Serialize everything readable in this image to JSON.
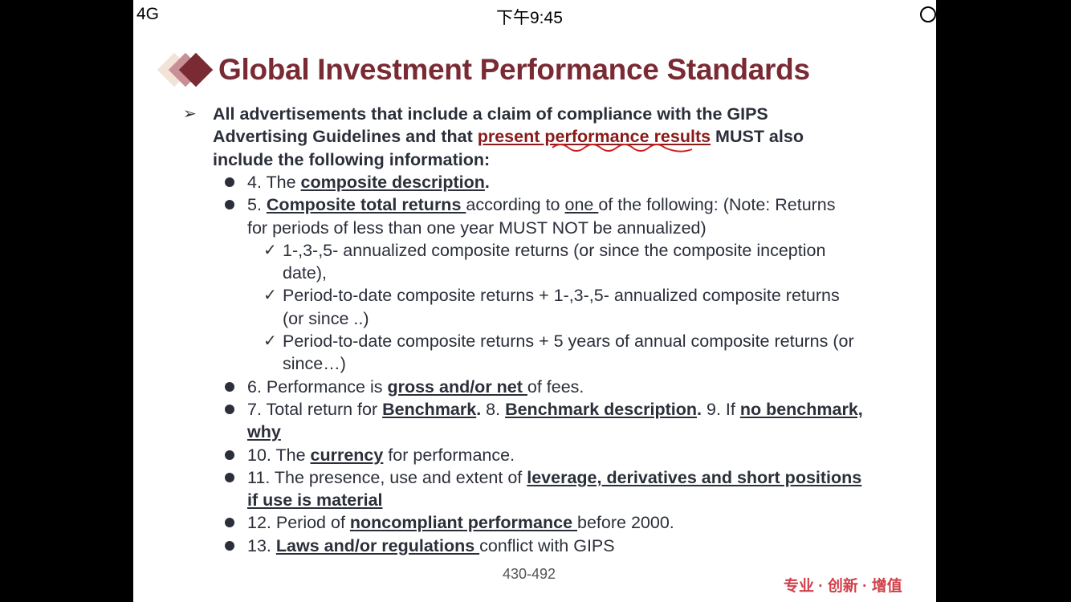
{
  "status_bar": {
    "network": "4G",
    "time": "下午9:45",
    "lock_icon": "rotation-lock-icon"
  },
  "slide": {
    "title": "Global Investment Performance Standards",
    "intro": [
      [
        {
          "t": "All advertisements that include a claim of compliance with the GIPS",
          "s": "b"
        }
      ],
      [
        {
          "t": "Advertising Guidelines and that ",
          "s": "b"
        },
        {
          "t": "present performance results",
          "s": "red"
        },
        {
          "t": " MUST also",
          "s": "b"
        }
      ],
      [
        {
          "t": "include the following information:",
          "s": "b"
        }
      ]
    ],
    "items": [
      {
        "type": "dot",
        "lines": [
          [
            {
              "t": "4. The ",
              "s": ""
            },
            {
              "t": "composite description",
              "s": "bu"
            },
            {
              "t": ".",
              "s": "b"
            }
          ]
        ]
      },
      {
        "type": "dot",
        "lines": [
          [
            {
              "t": "5. ",
              "s": ""
            },
            {
              "t": "Composite total returns ",
              "s": "bu"
            },
            {
              "t": "according to ",
              "s": ""
            },
            {
              "t": "one ",
              "s": "u"
            },
            {
              "t": "of the following: (Note: Returns",
              "s": ""
            }
          ],
          [
            {
              "t": "for periods of less than one year MUST NOT be annualized)",
              "s": ""
            }
          ]
        ]
      },
      {
        "type": "check",
        "lines": [
          [
            {
              "t": "1-,3-,5- annualized composite returns (or since the composite inception",
              "s": ""
            }
          ],
          [
            {
              "t": "date),",
              "s": ""
            }
          ]
        ]
      },
      {
        "type": "check",
        "lines": [
          [
            {
              "t": "Period-to-date composite returns + 1-,3-,5- annualized composite returns",
              "s": ""
            }
          ],
          [
            {
              "t": "(or since ..)",
              "s": ""
            }
          ]
        ]
      },
      {
        "type": "check",
        "lines": [
          [
            {
              "t": "Period-to-date composite returns + 5 years of annual composite returns (or",
              "s": ""
            }
          ],
          [
            {
              "t": "since…)",
              "s": ""
            }
          ]
        ]
      },
      {
        "type": "dot",
        "lines": [
          [
            {
              "t": "6. Performance is ",
              "s": ""
            },
            {
              "t": "gross and/or net ",
              "s": "bu"
            },
            {
              "t": "of fees.",
              "s": ""
            }
          ]
        ]
      },
      {
        "type": "dot",
        "lines": [
          [
            {
              "t": "7. Total return for ",
              "s": ""
            },
            {
              "t": "Benchmark",
              "s": "bu"
            },
            {
              "t": ". ",
              "s": "b"
            },
            {
              "t": "8. ",
              "s": ""
            },
            {
              "t": "Benchmark description",
              "s": "bu"
            },
            {
              "t": ". ",
              "s": "b"
            },
            {
              "t": "9. If ",
              "s": ""
            },
            {
              "t": "no benchmark,",
              "s": "bu"
            }
          ],
          [
            {
              "t": "why",
              "s": "bu"
            }
          ]
        ]
      },
      {
        "type": "dot",
        "lines": [
          [
            {
              "t": "10. The ",
              "s": ""
            },
            {
              "t": "currency",
              "s": "bu"
            },
            {
              "t": " for performance.",
              "s": ""
            }
          ]
        ]
      },
      {
        "type": "dot",
        "lines": [
          [
            {
              "t": "11. The presence, use and extent of ",
              "s": ""
            },
            {
              "t": "leverage, derivatives and short positions",
              "s": "bu"
            }
          ],
          [
            {
              "t": "if use is material",
              "s": "bu"
            }
          ]
        ]
      },
      {
        "type": "dot",
        "lines": [
          [
            {
              "t": "12. Period of ",
              "s": ""
            },
            {
              "t": "noncompliant performance ",
              "s": "bu"
            },
            {
              "t": "before 2000.",
              "s": ""
            }
          ]
        ]
      },
      {
        "type": "dot",
        "lines": [
          [
            {
              "t": "13. ",
              "s": ""
            },
            {
              "t": "Laws and/or regulations ",
              "s": "bu"
            },
            {
              "t": "conflict with GIPS",
              "s": ""
            }
          ]
        ]
      }
    ],
    "page_number": "430-492",
    "slogan": "专业 · 创新 · 增值"
  },
  "colors": {
    "title": "#7a2a33",
    "text": "#2b2f3a",
    "highlight": "#8b1a1a",
    "slogan": "#d0404a"
  }
}
